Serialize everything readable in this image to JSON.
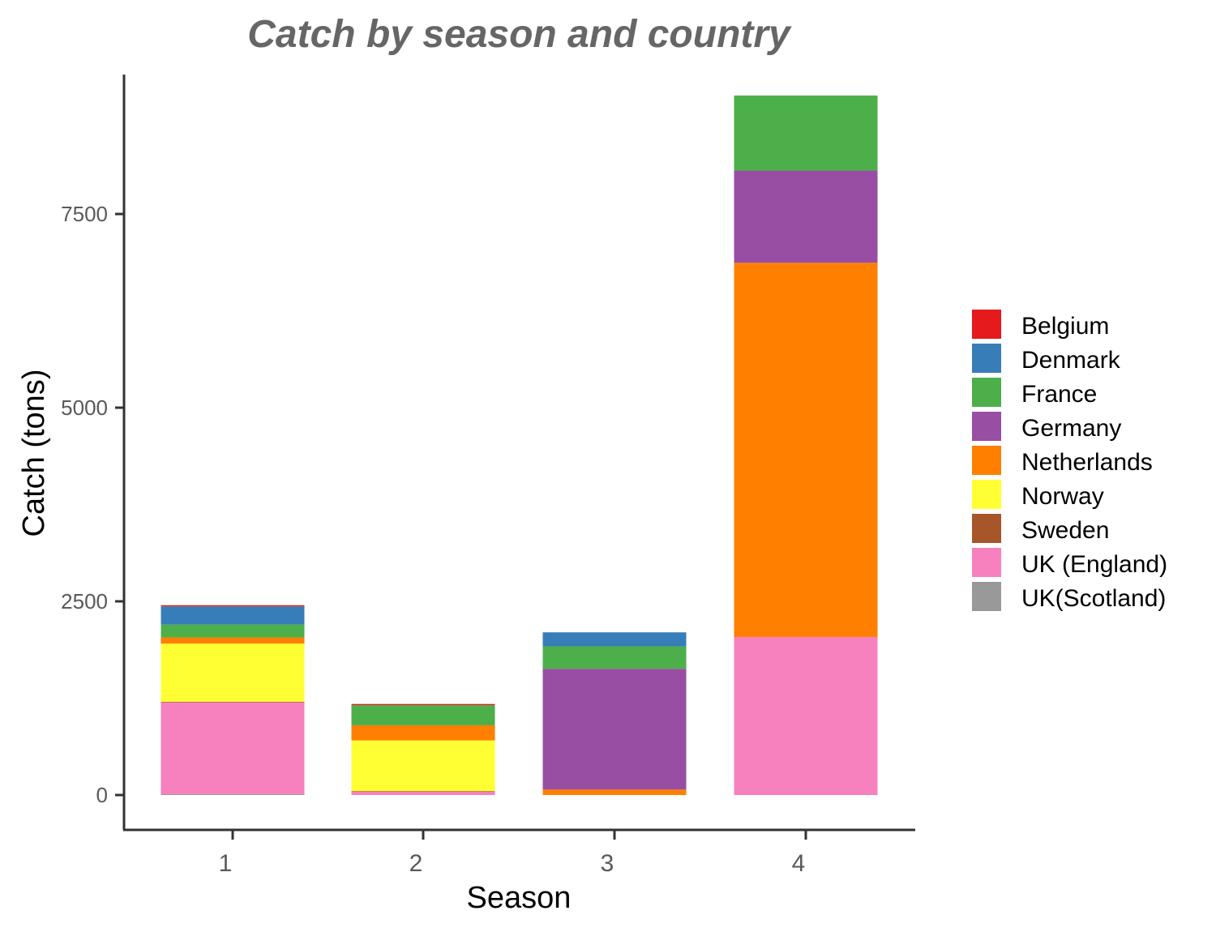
{
  "chart_data": {
    "type": "bar",
    "stacked": true,
    "title": "Catch by season and country",
    "xlabel": "Season",
    "ylabel": "Catch (tons)",
    "categories": [
      "1",
      "2",
      "3",
      "4"
    ],
    "yticks": [
      0,
      2500,
      5000,
      7500
    ],
    "ylim": [
      -450,
      9300
    ],
    "grid": false,
    "legend_position": "right",
    "series": [
      {
        "name": "Belgium",
        "color": "#E41A1C",
        "values": [
          15,
          15,
          0,
          0
        ]
      },
      {
        "name": "Denmark",
        "color": "#377EB8",
        "values": [
          235,
          0,
          180,
          0
        ]
      },
      {
        "name": "France",
        "color": "#4DAF4A",
        "values": [
          165,
          260,
          290,
          970
        ]
      },
      {
        "name": "Germany",
        "color": "#984EA3",
        "values": [
          0,
          0,
          1560,
          1190
        ]
      },
      {
        "name": "Netherlands",
        "color": "#FF7F00",
        "values": [
          80,
          195,
          70,
          4830
        ]
      },
      {
        "name": "Norway",
        "color": "#FFFF33",
        "values": [
          750,
          655,
          0,
          0
        ]
      },
      {
        "name": "Sweden",
        "color": "#A65628",
        "values": [
          10,
          10,
          0,
          0
        ]
      },
      {
        "name": "UK (England)",
        "color": "#F781BF",
        "values": [
          1185,
          40,
          0,
          2040
        ]
      },
      {
        "name": "UK(Scotland)",
        "color": "#999999",
        "values": [
          10,
          0,
          0,
          0
        ]
      }
    ]
  }
}
